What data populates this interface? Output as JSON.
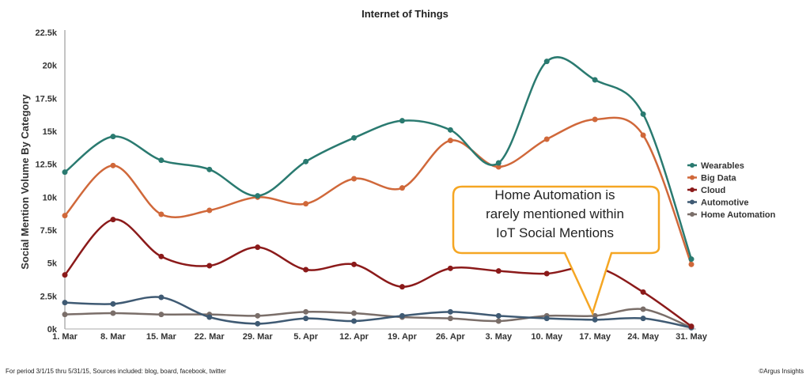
{
  "chart_data": {
    "type": "line",
    "title": "Internet of Things",
    "xlabel": "",
    "ylabel": "Social Mention Volume By Category",
    "ylim": [
      0,
      22500
    ],
    "yticks": [
      "0k",
      "2.5k",
      "5k",
      "7.5k",
      "10k",
      "12.5k",
      "15k",
      "17.5k",
      "20k",
      "22.5k"
    ],
    "categories": [
      "1. Mar",
      "8. Mar",
      "15. Mar",
      "22. Mar",
      "29. Mar",
      "5. Apr",
      "12. Apr",
      "19. Apr",
      "26. Apr",
      "3. May",
      "10. May",
      "17. May",
      "24. May",
      "31. May"
    ],
    "legend_position": "right",
    "series": [
      {
        "name": "Wearables",
        "color": "#2a7a70",
        "values": [
          11900,
          14600,
          12800,
          12100,
          10100,
          12700,
          14500,
          15800,
          15100,
          12600,
          20300,
          18900,
          16300,
          5300
        ]
      },
      {
        "name": "Big Data",
        "color": "#d0683a",
        "values": [
          8600,
          12400,
          8700,
          9000,
          10000,
          9500,
          11400,
          10700,
          14300,
          12300,
          14400,
          15900,
          14700,
          4900
        ]
      },
      {
        "name": "Cloud",
        "color": "#8b1a1a",
        "values": [
          4100,
          8300,
          5500,
          4800,
          6200,
          4500,
          4900,
          3200,
          4600,
          4400,
          4200,
          4700,
          2800,
          200
        ]
      },
      {
        "name": "Automotive",
        "color": "#3f5a73",
        "values": [
          2000,
          1900,
          2400,
          900,
          400,
          800,
          600,
          1000,
          1300,
          1000,
          800,
          700,
          800,
          100
        ]
      },
      {
        "name": "Home Automation",
        "color": "#7a6e69",
        "values": [
          1100,
          1200,
          1100,
          1100,
          1000,
          1300,
          1200,
          900,
          800,
          600,
          1000,
          1000,
          1500,
          100
        ]
      }
    ],
    "annotation": "Home Automation is rarely mentioned within IoT Social Mentions"
  },
  "callout": {
    "line1": "Home Automation is",
    "line2": "rarely mentioned within",
    "line3": "IoT Social Mentions",
    "color": "#f5a623"
  },
  "footer": {
    "left": "For period 3/1/15 thru 5/31/15, Sources included: blog, board, facebook, twitter",
    "right": "©Argus Insights"
  }
}
